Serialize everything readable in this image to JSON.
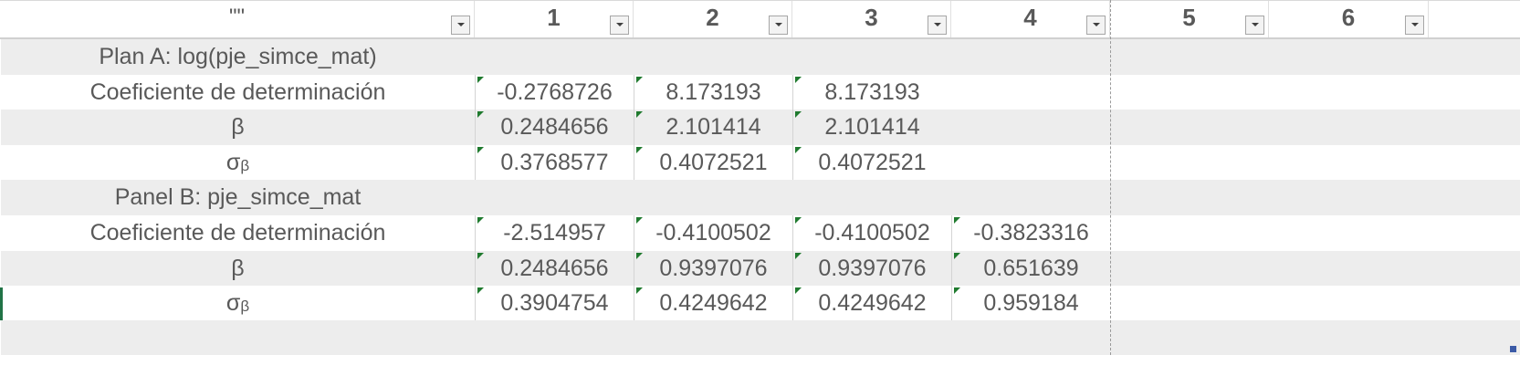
{
  "sheet": {
    "header": {
      "first_label": "\"\"",
      "columns": [
        "1",
        "2",
        "3",
        "4",
        "5",
        "6"
      ]
    },
    "rows": [
      {
        "kind": "title",
        "label": "Plan A: log(pje_simce_mat)",
        "values": [
          "",
          "",
          "",
          "",
          "",
          ""
        ]
      },
      {
        "kind": "data",
        "label": "Coeficiente de determinación",
        "values": [
          "-0.2768726",
          "8.173193",
          "8.173193",
          "",
          "",
          ""
        ]
      },
      {
        "kind": "data",
        "label": "β",
        "values": [
          "0.2484656",
          "2.101414",
          "2.101414",
          "",
          "",
          ""
        ]
      },
      {
        "kind": "sigma",
        "label_main": "σ",
        "label_sub": "β",
        "values": [
          "0.3768577",
          "0.4072521",
          "0.4072521",
          "",
          "",
          ""
        ]
      },
      {
        "kind": "title",
        "label": "Panel B: pje_simce_mat",
        "values": [
          "",
          "",
          "",
          "",
          "",
          ""
        ]
      },
      {
        "kind": "data",
        "label": "Coeficiente de determinación",
        "values": [
          "-2.514957",
          "-0.4100502",
          "-0.4100502",
          "-0.3823316",
          "",
          ""
        ]
      },
      {
        "kind": "data",
        "label": "β",
        "values": [
          "0.2484656",
          "0.9397076",
          "0.9397076",
          "0.651639",
          "",
          ""
        ]
      },
      {
        "kind": "sigma",
        "label_main": "σ",
        "label_sub": "β",
        "values": [
          "0.3904754",
          "0.4249642",
          "0.4249642",
          "0.959184",
          "",
          ""
        ]
      },
      {
        "kind": "empty",
        "label": "",
        "values": [
          "",
          "",
          "",
          "",
          "",
          ""
        ]
      }
    ]
  },
  "icons": {
    "filter": "chevron-down-icon",
    "error_indicator": "error-indicator-icon"
  },
  "colors": {
    "text": "#595959",
    "band": "#ededed",
    "error_indicator": "#1f7a2e",
    "active_cell_accent": "#217346"
  }
}
